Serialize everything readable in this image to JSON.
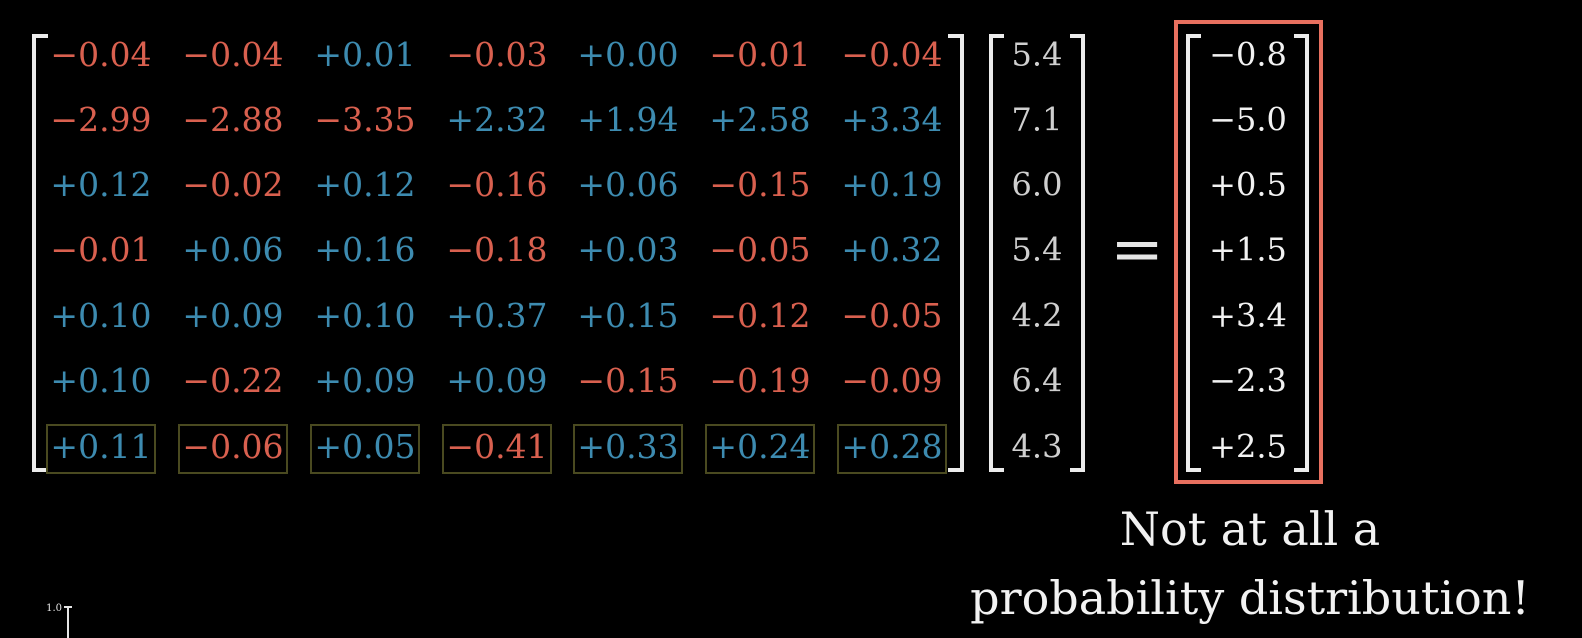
{
  "colors": {
    "background": "#000000",
    "positive": "#3d8bb0",
    "negative": "#d9604f",
    "neutral": "#e6e6e6",
    "highlight_box": "#e8705f",
    "row_box": "#4a4a20"
  },
  "matrix": {
    "rows": [
      [
        "−0.04",
        "−0.04",
        "+0.01",
        "−0.03",
        "+0.00",
        "−0.01",
        "−0.04"
      ],
      [
        "−2.99",
        "−2.88",
        "−3.35",
        "+2.32",
        "+1.94",
        "+2.58",
        "+3.34"
      ],
      [
        "+0.12",
        "−0.02",
        "+0.12",
        "−0.16",
        "+0.06",
        "−0.15",
        "+0.19"
      ],
      [
        "−0.01",
        "+0.06",
        "+0.16",
        "−0.18",
        "+0.03",
        "−0.05",
        "+0.32"
      ],
      [
        "+0.10",
        "+0.09",
        "+0.10",
        "+0.37",
        "+0.15",
        "−0.12",
        "−0.05"
      ],
      [
        "+0.10",
        "−0.22",
        "+0.09",
        "+0.09",
        "−0.15",
        "−0.19",
        "−0.09"
      ],
      [
        "+0.11",
        "−0.06",
        "+0.05",
        "−0.41",
        "+0.33",
        "+0.24",
        "+0.28"
      ]
    ],
    "highlighted_row": 6
  },
  "input_vector": [
    "5.4",
    "7.1",
    "6.0",
    "5.4",
    "4.2",
    "6.4",
    "4.3"
  ],
  "equals_sign": "=",
  "output_vector": [
    "−0.8",
    "−5.0",
    "+0.5",
    "+1.5",
    "+3.4",
    "−2.3",
    "+2.5"
  ],
  "caption": {
    "line1": "Not at all a",
    "line2": "probability distribution!"
  },
  "axis_tick_label": "1.0"
}
